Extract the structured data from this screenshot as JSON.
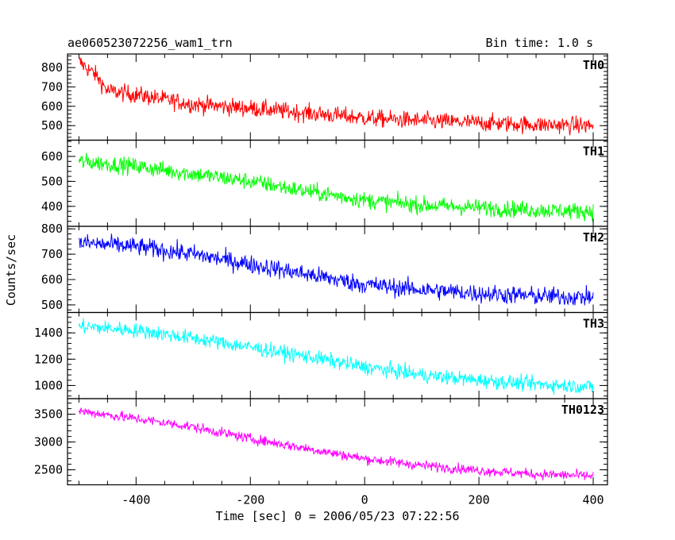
{
  "chart_data": {
    "type": "line",
    "title": "ae060523072256_wam1_trn",
    "subtitle": "Bin time: 1.0 s",
    "xlabel": "Time [sec] 0 = 2006/05/23 07:22:56",
    "ylabel": "Counts/sec",
    "xlim": [
      -520,
      425
    ],
    "x_ticks": [
      -400,
      -200,
      0,
      200,
      400
    ],
    "x_range": [
      -500,
      400
    ],
    "grid": false,
    "panels": [
      {
        "name": "TH0",
        "color": "#ff0000",
        "ylim": [
          425,
          870
        ],
        "y_ticks": [
          500,
          600,
          700,
          800
        ],
        "curve": [
          [
            -500,
            830
          ],
          [
            -470,
            760
          ],
          [
            -450,
            680
          ],
          [
            -400,
            660
          ],
          [
            -300,
            610
          ],
          [
            -200,
            590
          ],
          [
            -100,
            565
          ],
          [
            0,
            540
          ],
          [
            100,
            525
          ],
          [
            200,
            515
          ],
          [
            300,
            505
          ],
          [
            400,
            500
          ]
        ],
        "noise": 32
      },
      {
        "name": "TH1",
        "color": "#00ff00",
        "ylim": [
          320,
          665
        ],
        "y_ticks": [
          400,
          500,
          600
        ],
        "curve": [
          [
            -500,
            580
          ],
          [
            -400,
            560
          ],
          [
            -300,
            530
          ],
          [
            -200,
            500
          ],
          [
            -100,
            460
          ],
          [
            0,
            425
          ],
          [
            100,
            405
          ],
          [
            200,
            395
          ],
          [
            300,
            385
          ],
          [
            400,
            380
          ]
        ],
        "noise": 24
      },
      {
        "name": "TH2",
        "color": "#0000ff",
        "ylim": [
          470,
          810
        ],
        "y_ticks": [
          500,
          600,
          700,
          800
        ],
        "curve": [
          [
            -500,
            745
          ],
          [
            -400,
            730
          ],
          [
            -300,
            700
          ],
          [
            -200,
            660
          ],
          [
            -100,
            620
          ],
          [
            0,
            580
          ],
          [
            100,
            560
          ],
          [
            200,
            545
          ],
          [
            300,
            535
          ],
          [
            400,
            530
          ]
        ],
        "noise": 26
      },
      {
        "name": "TH3",
        "color": "#00ffff",
        "ylim": [
          900,
          1555
        ],
        "y_ticks": [
          1000,
          1200,
          1400
        ],
        "curve": [
          [
            -500,
            1450
          ],
          [
            -400,
            1420
          ],
          [
            -300,
            1360
          ],
          [
            -200,
            1290
          ],
          [
            -100,
            1220
          ],
          [
            0,
            1140
          ],
          [
            100,
            1080
          ],
          [
            200,
            1040
          ],
          [
            300,
            1010
          ],
          [
            400,
            990
          ]
        ],
        "noise": 40
      },
      {
        "name": "TH0123",
        "color": "#ff00ff",
        "ylim": [
          2230,
          3780
        ],
        "y_ticks": [
          2500,
          3000,
          3500
        ],
        "curve": [
          [
            -500,
            3560
          ],
          [
            -400,
            3420
          ],
          [
            -300,
            3270
          ],
          [
            -200,
            3060
          ],
          [
            -100,
            2880
          ],
          [
            0,
            2700
          ],
          [
            100,
            2580
          ],
          [
            200,
            2490
          ],
          [
            300,
            2420
          ],
          [
            400,
            2390
          ]
        ],
        "noise": 65
      }
    ]
  }
}
